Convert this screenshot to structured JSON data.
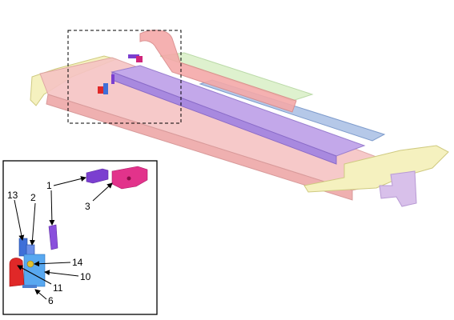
{
  "callouts": {
    "c1": "1",
    "c2": "2",
    "c3": "3",
    "c6": "6",
    "c10": "10",
    "c11": "11",
    "c13": "13",
    "c14": "14"
  },
  "colors": {
    "frame_pink": "#f2b8b8",
    "rail_purple": "#b79ae0",
    "rail_blue": "#9fb6dd",
    "frame_yellow": "#f2efb0",
    "part_magenta": "#d0257a",
    "part_violet": "#7b3fd0",
    "part_blue": "#3f6fd8",
    "part_red": "#e02828"
  }
}
